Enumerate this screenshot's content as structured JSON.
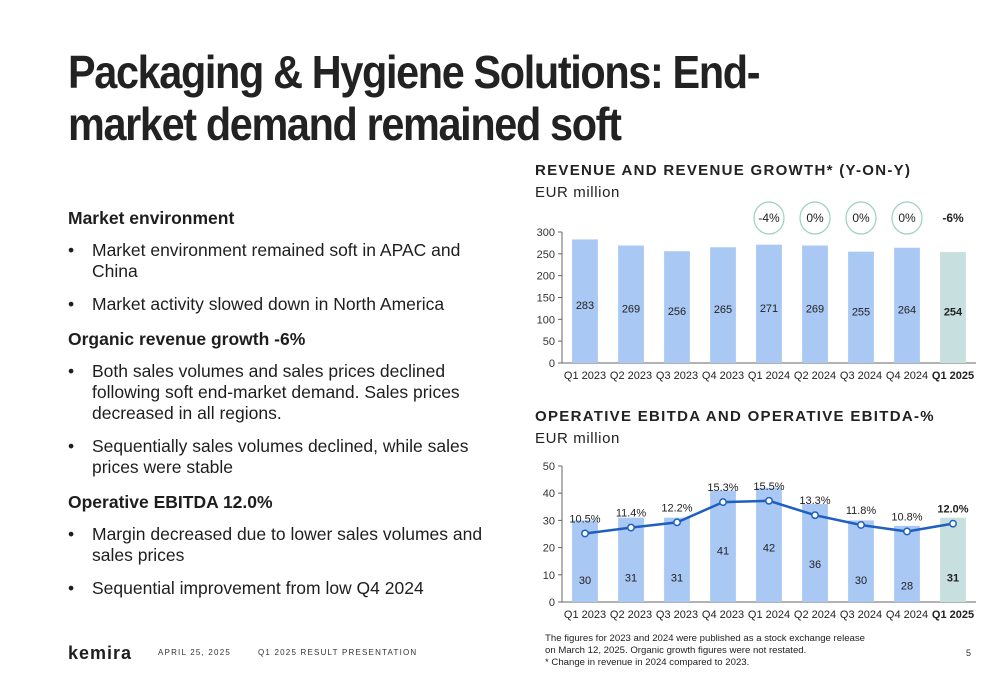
{
  "title": "Packaging & Hygiene Solutions: End-market demand remained soft",
  "sections": [
    {
      "heading": "Market environment",
      "bullets": [
        "Market environment remained soft in APAC and China",
        "Market activity slowed down in North America"
      ]
    },
    {
      "heading": "Organic revenue growth -6%",
      "bullets": [
        "Both sales volumes and sales prices declined following soft end-market demand. Sales prices decreased in all regions.",
        "Sequentially sales volumes declined, while sales prices were stable"
      ]
    },
    {
      "heading": "Operative EBITDA 12.0%",
      "bullets": [
        "Margin decreased due to lower sales volumes and sales prices",
        "Sequential improvement from low Q4 2024"
      ]
    }
  ],
  "bullet_symbol": "•",
  "chart_data": [
    {
      "type": "bar",
      "title": "REVENUE AND REVENUE GROWTH* (Y-ON-Y)",
      "subtitle": "EUR million",
      "categories": [
        "Q1 2023",
        "Q2 2023",
        "Q3 2023",
        "Q4 2023",
        "Q1 2024",
        "Q2 2024",
        "Q3 2024",
        "Q4 2024",
        "Q1 2025"
      ],
      "values": [
        283,
        269,
        256,
        265,
        271,
        269,
        255,
        264,
        254
      ],
      "growth_labels": [
        "",
        "",
        "",
        "",
        "-4%",
        "0%",
        "0%",
        "0%",
        "-6%"
      ],
      "highlight_index": 8,
      "ylim": [
        0,
        300
      ],
      "yticks": [
        0,
        50,
        100,
        150,
        200,
        250,
        300
      ],
      "grid": false,
      "colors": {
        "bar": "#a9c8f4",
        "highlight": "#c7dfdf",
        "growth_circle": "#9ccfbf"
      }
    },
    {
      "type": "bar",
      "title": "OPERATIVE EBITDA AND OPERATIVE EBITDA-%",
      "subtitle": "EUR million",
      "categories": [
        "Q1 2023",
        "Q2 2023",
        "Q3 2023",
        "Q4 2023",
        "Q1 2024",
        "Q2 2024",
        "Q3 2024",
        "Q4 2024",
        "Q1 2025"
      ],
      "values": [
        30,
        31,
        31,
        41,
        42,
        36,
        30,
        28,
        31
      ],
      "highlight_index": 8,
      "ylim": [
        0,
        50
      ],
      "yticks": [
        0,
        10,
        20,
        30,
        40,
        50
      ],
      "grid": false,
      "series": [
        {
          "type": "line",
          "values": [
            10.5,
            11.4,
            12.2,
            15.3,
            15.5,
            13.3,
            11.8,
            10.8,
            12.0
          ],
          "labels": [
            "10.5%",
            "11.4%",
            "12.2%",
            "15.3%",
            "15.5%",
            "13.3%",
            "11.8%",
            "10.8%",
            "12.0%"
          ],
          "color": "#1f5fbf"
        }
      ],
      "colors": {
        "bar": "#a9c8f4",
        "highlight": "#c7dfdf"
      }
    }
  ],
  "footer": {
    "logo": "kemira",
    "date": "APRIL 25, 2025",
    "presentation": "Q1 2025 RESULT PRESENTATION",
    "page": "5",
    "notes": [
      "The figures for 2023 and 2024 were published as a stock exchange release",
      "on March 12, 2025. Organic growth figures were not restated.",
      "* Change in revenue in 2024 compared to 2023."
    ]
  }
}
